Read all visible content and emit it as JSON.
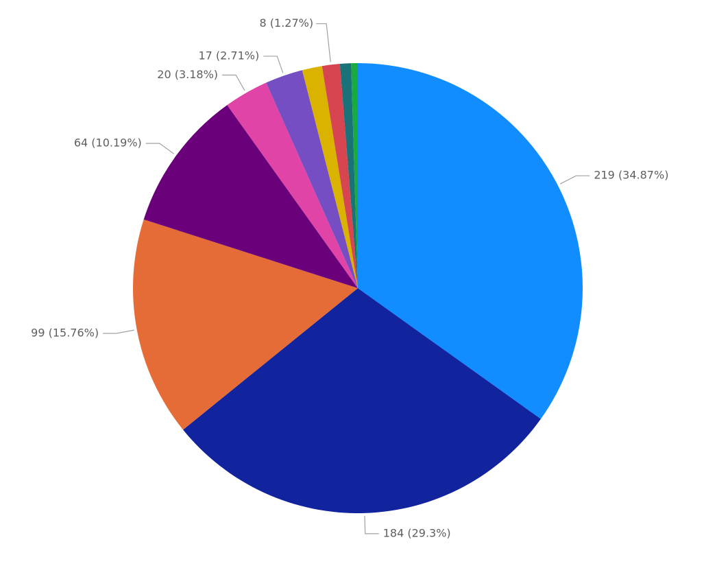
{
  "chart_data": {
    "type": "pie",
    "values": [
      219,
      184,
      99,
      64,
      20,
      17,
      9,
      8,
      5,
      3
    ],
    "value_labels": [
      "219 (34.87%)",
      "184 (29.3%)",
      "99 (15.76%)",
      "64 (10.19%)",
      "20 (3.18%)",
      "17 (2.71%)",
      null,
      "8 (1.27%)",
      null,
      null
    ],
    "colors": [
      "#118DFF",
      "#12239E",
      "#E66C37",
      "#6B007B",
      "#E044A7",
      "#744EC2",
      "#D9B300",
      "#D64550",
      "#197278",
      "#1AAB40"
    ]
  }
}
